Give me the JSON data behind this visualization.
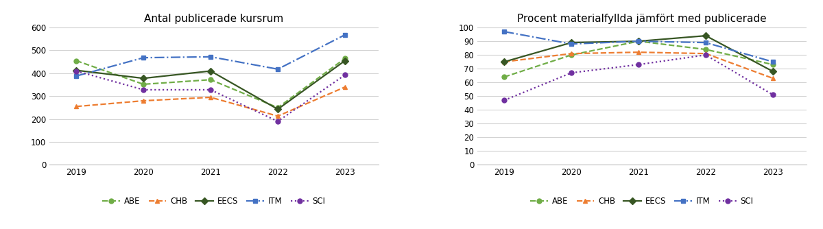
{
  "years": [
    2019,
    2020,
    2021,
    2022,
    2023
  ],
  "chart1_title": "Antal publicerade kursrum",
  "chart2_title": "Procent materialfyllda jämfört med publicerade",
  "chart1": {
    "ABE": [
      455,
      352,
      372,
      250,
      465
    ],
    "CHB": [
      255,
      280,
      295,
      213,
      340
    ],
    "EECS": [
      413,
      378,
      410,
      243,
      455
    ],
    "ITM": [
      388,
      468,
      472,
      418,
      568
    ],
    "SCI": [
      410,
      328,
      328,
      190,
      393
    ]
  },
  "chart2": {
    "ABE": [
      64,
      80,
      90,
      84,
      73
    ],
    "CHB": [
      75,
      81,
      82,
      81,
      63
    ],
    "EECS": [
      75,
      89,
      90,
      94,
      68
    ],
    "ITM": [
      97,
      88,
      90,
      89,
      75
    ],
    "SCI": [
      47,
      67,
      73,
      80,
      51
    ]
  },
  "series": [
    "ABE",
    "CHB",
    "EECS",
    "ITM",
    "SCI"
  ],
  "colors": {
    "ABE": "#70AD47",
    "CHB": "#ED7D31",
    "EECS": "#375623",
    "ITM": "#4472C4",
    "SCI": "#7030A0"
  },
  "linestyles": {
    "ABE": "--",
    "CHB": "--",
    "EECS": "-",
    "ITM": "-.",
    "SCI": ":"
  },
  "markers": {
    "ABE": "o",
    "CHB": "^",
    "EECS": "D",
    "ITM": "s",
    "SCI": "o"
  },
  "markersize": 5,
  "linewidth": 1.6,
  "chart1_ylim": [
    0,
    600
  ],
  "chart1_yticks": [
    0,
    100,
    200,
    300,
    400,
    500,
    600
  ],
  "chart2_ylim": [
    0,
    100
  ],
  "chart2_yticks": [
    0,
    10,
    20,
    30,
    40,
    50,
    60,
    70,
    80,
    90,
    100
  ],
  "background_color": "#ffffff",
  "grid_color": "#d3d3d3",
  "spine_color": "#c0c0c0",
  "tick_fontsize": 8.5,
  "title_fontsize": 11,
  "legend_fontsize": 8.5
}
